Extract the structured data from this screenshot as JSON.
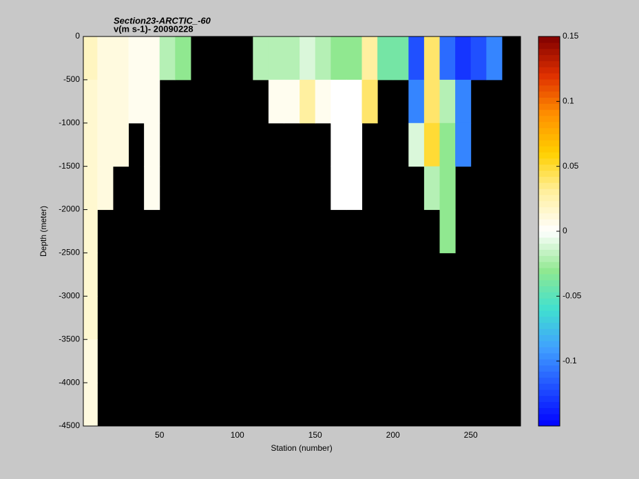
{
  "chart_data": {
    "type": "heatmap",
    "title": "Section23-ARCTIC_-60",
    "subtitle": "v(m s-1)- 20090228",
    "xlabel": "Station (number)",
    "ylabel": "Depth (meter)",
    "x": [
      5,
      15,
      25,
      35,
      45,
      55,
      65,
      75,
      85,
      95,
      105,
      115,
      125,
      135,
      145,
      155,
      165,
      175,
      185,
      195,
      205,
      215,
      225,
      235,
      245,
      255,
      265,
      275
    ],
    "y": [
      -250,
      -750,
      -1250,
      -1750,
      -2250,
      -2750,
      -3250,
      -3750,
      -4250
    ],
    "xlim": [
      1,
      282
    ],
    "ylim": [
      -4500,
      0
    ],
    "xticks": [
      50,
      100,
      150,
      200,
      250
    ],
    "yticks": [
      0,
      -500,
      -1000,
      -1500,
      -2000,
      -2500,
      -3000,
      -3500,
      -4000,
      -4500
    ],
    "clim": [
      -0.15,
      0.15
    ],
    "cticks": [
      0.15,
      0.1,
      0.05,
      0,
      -0.05,
      -0.1
    ],
    "colormap": [
      "#0000ff",
      "#2050ff",
      "#40a0ff",
      "#40e0d0",
      "#90e890",
      "#ffffff",
      "#fff0a0",
      "#ffd000",
      "#ff9000",
      "#e03000",
      "#800000"
    ],
    "missing_color": "#000000",
    "values": [
      [
        0.02,
        0.01,
        0.01,
        0.005,
        0.005,
        -0.02,
        -0.03,
        null,
        null,
        null,
        null,
        -0.02,
        -0.02,
        -0.02,
        -0.01,
        -0.02,
        -0.03,
        -0.03,
        0.03,
        -0.04,
        -0.04,
        -0.12,
        0.04,
        -0.11,
        -0.13,
        -0.12,
        -0.1,
        null
      ],
      [
        0.015,
        0.01,
        0.01,
        0.005,
        0.005,
        null,
        null,
        null,
        null,
        null,
        null,
        null,
        0.005,
        0.005,
        0.03,
        0.005,
        0.0,
        0.0,
        0.04,
        null,
        null,
        -0.1,
        0.04,
        -0.02,
        -0.1,
        null,
        null,
        null
      ],
      [
        0.015,
        0.01,
        0.01,
        null,
        0.005,
        null,
        null,
        null,
        null,
        null,
        null,
        null,
        null,
        null,
        null,
        null,
        0.0,
        0.0,
        null,
        null,
        null,
        -0.01,
        0.05,
        -0.03,
        -0.1,
        null,
        null,
        null
      ],
      [
        0.015,
        0.01,
        null,
        null,
        0.005,
        null,
        null,
        null,
        null,
        null,
        null,
        null,
        null,
        null,
        null,
        null,
        0.0,
        0.0,
        null,
        null,
        null,
        null,
        -0.02,
        -0.03,
        null,
        null,
        null,
        null
      ],
      [
        0.015,
        null,
        null,
        null,
        null,
        null,
        null,
        null,
        null,
        null,
        null,
        null,
        null,
        null,
        null,
        null,
        null,
        null,
        null,
        null,
        null,
        null,
        null,
        -0.03,
        null,
        null,
        null,
        null
      ],
      [
        0.015,
        null,
        null,
        null,
        null,
        null,
        null,
        null,
        null,
        null,
        null,
        null,
        null,
        null,
        null,
        null,
        null,
        null,
        null,
        null,
        null,
        null,
        null,
        null,
        null,
        null,
        null,
        null
      ],
      [
        0.015,
        null,
        null,
        null,
        null,
        null,
        null,
        null,
        null,
        null,
        null,
        null,
        null,
        null,
        null,
        null,
        null,
        null,
        null,
        null,
        null,
        null,
        null,
        null,
        null,
        null,
        null,
        null
      ],
      [
        0.01,
        null,
        null,
        null,
        null,
        null,
        null,
        null,
        null,
        null,
        null,
        null,
        null,
        null,
        null,
        null,
        null,
        null,
        null,
        null,
        null,
        null,
        null,
        null,
        null,
        null,
        null,
        null
      ],
      [
        0.01,
        null,
        null,
        null,
        null,
        null,
        null,
        null,
        null,
        null,
        null,
        null,
        null,
        null,
        null,
        null,
        null,
        null,
        null,
        null,
        null,
        null,
        null,
        null,
        null,
        null,
        null,
        null
      ]
    ]
  }
}
